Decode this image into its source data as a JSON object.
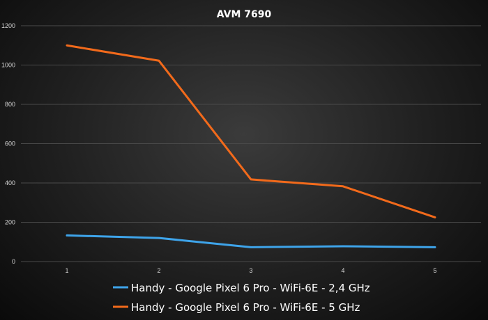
{
  "chart_data": {
    "type": "line",
    "title": "AVM 7690",
    "xlabel": "",
    "ylabel": "",
    "categories": [
      "1",
      "2",
      "3",
      "4",
      "5"
    ],
    "ylim": [
      0,
      1200
    ],
    "yticks": [
      "0",
      "200",
      "400",
      "600",
      "800",
      "1000",
      "1200"
    ],
    "grid": true,
    "legend_position": "bottom",
    "series": [
      {
        "name": "Handy - Google Pixel 6 Pro - WiFi-6E - 2,4 GHz",
        "color": "#3ea4ea",
        "values": [
          133,
          120,
          73,
          78,
          73
        ]
      },
      {
        "name": "Handy - Google Pixel 6 Pro - WiFi-6E - 5 GHz",
        "color": "#f26a1b",
        "values": [
          1100,
          1022,
          418,
          383,
          225
        ]
      }
    ]
  }
}
